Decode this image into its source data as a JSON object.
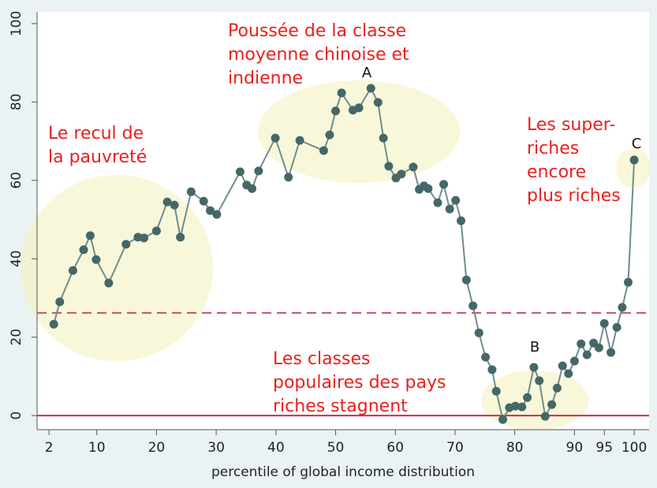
{
  "chart_data": {
    "type": "line",
    "xlabel": "percentile of global income distribution",
    "x": [
      2.8,
      3.8,
      6,
      7.8,
      8.9,
      9.9,
      12,
      14.9,
      16.9,
      17.9,
      20,
      21.8,
      23,
      24,
      25.8,
      27.9,
      29,
      30.1,
      34,
      35.1,
      36,
      37.1,
      39.9,
      42.1,
      44,
      48,
      49,
      50,
      51,
      52.9,
      53.9,
      55.9,
      57.1,
      58,
      58.9,
      60.1,
      61,
      63,
      64,
      64.8,
      65.5,
      67.1,
      68.1,
      69.1,
      70.1,
      71,
      71.9,
      73,
      74,
      75.1,
      76.2,
      76.9,
      78,
      79.1,
      80.1,
      81.2,
      82.1,
      83.2,
      84.1,
      85.1,
      86.2,
      87.1,
      88,
      89,
      90,
      91.1,
      92.1,
      93.2,
      94.1,
      95,
      96.1,
      97.1,
      98,
      99,
      100
    ],
    "values": [
      23.3,
      29,
      37,
      42.3,
      45.9,
      39.8,
      33.8,
      43.7,
      45.5,
      45.3,
      47.1,
      54.5,
      53.7,
      45.5,
      57.1,
      54.7,
      52.3,
      51.3,
      62.2,
      58.8,
      57.9,
      62.4,
      70.8,
      60.8,
      70.2,
      67.6,
      71.6,
      77.7,
      82.3,
      77.9,
      78.5,
      83.5,
      79.9,
      70.8,
      63.6,
      60.6,
      61.6,
      63.4,
      57.7,
      58.6,
      57.9,
      54.3,
      59,
      52.7,
      54.9,
      49.7,
      34.6,
      28,
      21.1,
      14.9,
      11.7,
      6.2,
      -1,
      2,
      2.4,
      2.2,
      4.6,
      12.3,
      8.9,
      -0.2,
      2.8,
      7,
      12.7,
      10.7,
      13.9,
      18.3,
      15.5,
      18.5,
      17.3,
      23.5,
      16.1,
      22.5,
      27.6,
      34,
      65.2
    ],
    "line_color": "#6f8d8c",
    "marker_color": "#45676a",
    "xlim": [
      0,
      102.5
    ],
    "ylim": [
      -3.6,
      103
    ],
    "xticks": [
      2,
      10,
      20,
      30,
      40,
      50,
      60,
      70,
      80,
      90,
      95,
      100
    ],
    "yticks": [
      0,
      20,
      40,
      60,
      80,
      100
    ],
    "hlines": [
      {
        "value": 26.2,
        "style": "dashed",
        "color": "#c0506e"
      },
      {
        "value": 0,
        "style": "solid",
        "color": "#c8304a"
      }
    ],
    "annotations": [
      {
        "text": [
          "Poussée de la classe",
          "moyenne chinoise et",
          "indienne"
        ]
      },
      {
        "text": [
          "Le recul de",
          "la pauvreté"
        ]
      },
      {
        "text": [
          "Les super-",
          "riches",
          "encore",
          "plus riches"
        ]
      },
      {
        "text": [
          "Les classes",
          "populaires des pays",
          "riches stagnent"
        ]
      }
    ],
    "labels": [
      "A",
      "B",
      "C"
    ]
  }
}
